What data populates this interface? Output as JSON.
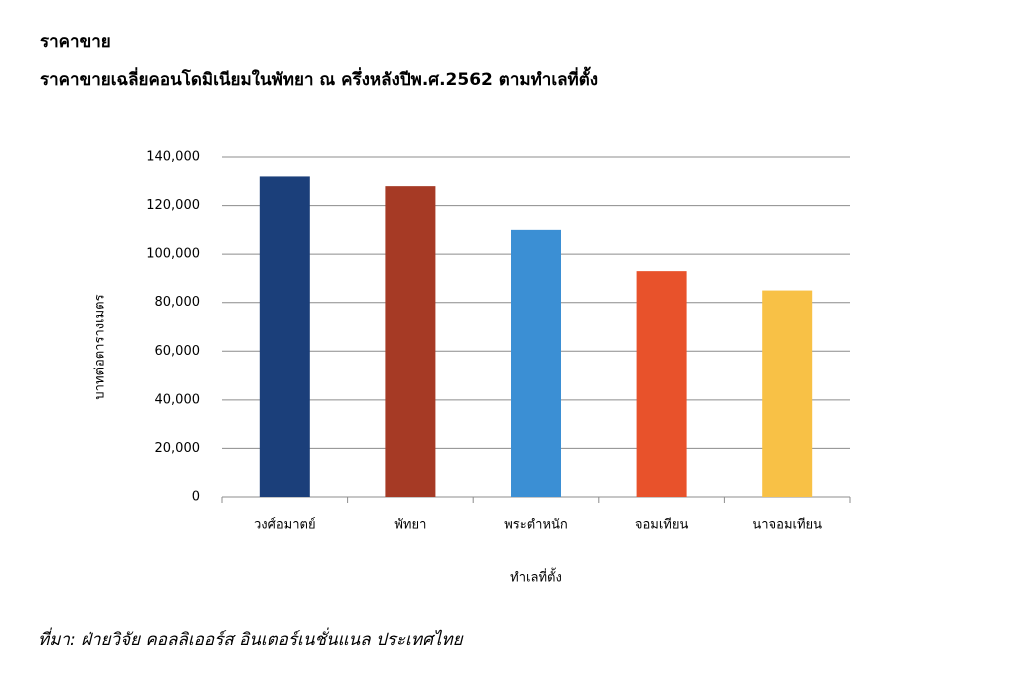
{
  "chart_data": {
    "type": "bar",
    "heading": "ราคาขาย",
    "title": "ราคาขายเฉลี่ยคอนโดมิเนียมในพัทยา  ณ ครึ่งหลังปีพ.ศ.2562 ตามทำเลที่ตั้ง",
    "categories": [
      "วงศ์อมาตย์",
      "พัทยา",
      "พระตำหนัก",
      "จอมเทียน",
      "นาจอมเทียน"
    ],
    "values": [
      132000,
      128000,
      110000,
      93000,
      85000
    ],
    "colors": [
      "#1b3f7a",
      "#a63a25",
      "#3b8fd4",
      "#e8522b",
      "#f8c146"
    ],
    "ylabel": "บาทต่อตารางเมตร",
    "xlabel": "ทำเลที่ตั้ง",
    "ylim": [
      0,
      140000
    ],
    "yticks": [
      0,
      {
        "value": 20000,
        "label": "20,000"
      },
      {
        "value": 40000,
        "label": "40,000"
      },
      {
        "value": 60000,
        "label": "60,000"
      },
      {
        "value": 80000,
        "label": "80,000"
      },
      {
        "value": 100000,
        "label": "100,000"
      },
      {
        "value": 120000,
        "label": "120,000"
      },
      {
        "value": 140000,
        "label": "140,000"
      }
    ],
    "grid": true,
    "source": "ที่มา: ฝ่ายวิจัย คอลลิเออร์ส อินเตอร์เนชั่นแนล ประเทศไทย"
  }
}
